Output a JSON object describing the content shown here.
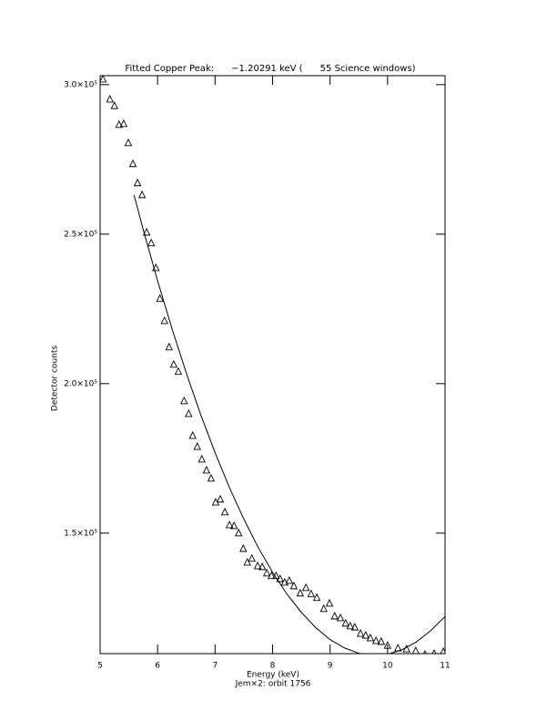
{
  "chart_data": {
    "type": "scatter",
    "title": "Fitted Copper Peak:      −1.20291 keV (      55 Science windows)",
    "x_label": "Energy (keV)",
    "subtitle": "Jem×2: orbit 1756",
    "y_label": "Detector counts",
    "xlim": [
      5,
      11
    ],
    "ylim": [
      109700,
      303000
    ],
    "xticks": [
      5,
      6,
      7,
      8,
      9,
      10,
      11
    ],
    "yticks": [
      {
        "value": 150000,
        "label": "1.5×10⁵"
      },
      {
        "value": 200000,
        "label": "2.0×10⁵"
      },
      {
        "value": 250000,
        "label": "2.5×10⁵"
      },
      {
        "value": 300000,
        "label": "3.0×10⁵"
      }
    ],
    "series": [
      {
        "type": "scatter",
        "marker": "triangle",
        "color": "#000000",
        "x": [
          5.05,
          5.17,
          5.25,
          5.33,
          5.41,
          5.49,
          5.57,
          5.65,
          5.73,
          5.81,
          5.89,
          5.97,
          6.04,
          6.12,
          6.2,
          6.28,
          6.36,
          6.46,
          6.54,
          6.61,
          6.69,
          6.77,
          6.85,
          6.93,
          7.01,
          7.09,
          7.17,
          7.25,
          7.33,
          7.41,
          7.49,
          7.56,
          7.64,
          7.74,
          7.82,
          7.9,
          7.98,
          8.06,
          8.13,
          8.21,
          8.29,
          8.37,
          8.48,
          8.58,
          8.67,
          8.77,
          8.89,
          8.99,
          9.08,
          9.18,
          9.27,
          9.35,
          9.43,
          9.53,
          9.62,
          9.7,
          9.8,
          9.89,
          10.0,
          10.18,
          10.33,
          10.49,
          10.65,
          10.81,
          10.97
        ],
        "values": [
          301800,
          295100,
          292900,
          286600,
          286900,
          280500,
          273500,
          267100,
          263100,
          250600,
          247000,
          238700,
          228400,
          221000,
          212200,
          206400,
          204000,
          194200,
          189900,
          182600,
          178900,
          174700,
          171000,
          168300,
          160300,
          161300,
          157000,
          152700,
          152400,
          150000,
          144800,
          140200,
          141500,
          139000,
          138700,
          136600,
          135700,
          135700,
          134700,
          133500,
          134100,
          132300,
          129900,
          131700,
          129600,
          128400,
          124700,
          126500,
          122200,
          121600,
          119800,
          118900,
          118500,
          116400,
          115800,
          114900,
          114000,
          113700,
          112400,
          111500,
          111200,
          110600,
          109400,
          109700,
          110300
        ]
      },
      {
        "type": "line",
        "color": "#000000",
        "x": [
          5.59,
          5.75,
          6.0,
          6.25,
          6.5,
          6.75,
          7.0,
          7.25,
          7.5,
          7.75,
          8.0,
          8.25,
          8.5,
          8.75,
          9.0,
          9.25,
          9.5,
          9.78,
          10.0,
          10.25,
          10.5,
          10.75,
          11.0
        ],
        "values": [
          263100,
          251500,
          234400,
          218400,
          203500,
          189600,
          176900,
          165200,
          154700,
          145200,
          136900,
          129600,
          123500,
          118400,
          114400,
          111600,
          109800,
          109100,
          109500,
          111000,
          113600,
          117400,
          122100
        ]
      }
    ]
  }
}
